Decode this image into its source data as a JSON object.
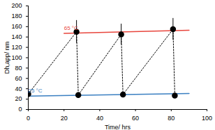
{
  "chart_data": {
    "type": "scatter",
    "xlabel": "Time/ hrs",
    "ylabel": "Dh,app/ nm",
    "xlim": [
      0,
      100
    ],
    "xticks": [
      0,
      20,
      40,
      60,
      80,
      100
    ],
    "ylim": [
      0,
      200
    ],
    "yticks": [
      0,
      20,
      40,
      60,
      80,
      100,
      120,
      140,
      160,
      180,
      200
    ],
    "grid": false,
    "series": [
      {
        "name": "65 °C",
        "type": "line",
        "color": "#e8453c",
        "line_style": "solid",
        "x": [
          20,
          90
        ],
        "values": [
          147,
          153
        ]
      },
      {
        "name": "25 °C",
        "type": "line",
        "color": "#3a7fc1",
        "line_style": "solid",
        "x": [
          0,
          90
        ],
        "values": [
          26,
          31
        ]
      },
      {
        "type": "scatter",
        "color": "#000000",
        "line_style": "dotted",
        "marker": "circle",
        "x": [
          0,
          27,
          28,
          52,
          53,
          81,
          82
        ],
        "values": [
          30,
          150,
          28,
          145,
          29,
          155,
          27
        ],
        "errors": [
          null,
          22,
          null,
          20,
          null,
          21,
          null
        ]
      }
    ]
  }
}
